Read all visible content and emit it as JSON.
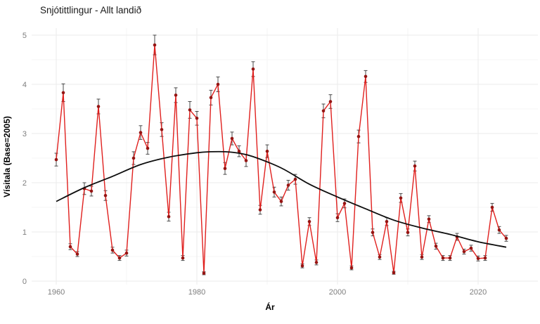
{
  "title": "Snjótittlingur - Allt landið",
  "chart_data": {
    "type": "line",
    "title": "Snjótittlingur - Allt landið",
    "xlabel": "Ár",
    "ylabel": "Vísitala (Base=2005)",
    "xlim": [
      1956.5,
      2028.5
    ],
    "ylim": [
      0,
      5.2
    ],
    "x_ticks": [
      1960,
      1980,
      2000,
      2020
    ],
    "x_tick_labels": [
      "1960",
      "1980",
      "2000",
      "2020"
    ],
    "x_minor_ticks": [
      1970,
      1990,
      2010
    ],
    "y_ticks": [
      0,
      1,
      2,
      3,
      4,
      5
    ],
    "y_tick_labels": [
      "0",
      "1",
      "2",
      "3",
      "4",
      "5"
    ],
    "y_minor_ticks": [
      0.5,
      1.5,
      2.5,
      3.5,
      4.5
    ],
    "grid": true,
    "legend": false,
    "series": [
      {
        "name": "index",
        "kind": "points-with-errorbars-and-line",
        "line_color": "#e0201e",
        "point_color": "#951513",
        "errorbar_color": "#4a4a4a",
        "years": [
          1960,
          1961,
          1962,
          1963,
          1964,
          1965,
          1966,
          1967,
          1968,
          1969,
          1970,
          1971,
          1972,
          1973,
          1974,
          1975,
          1976,
          1977,
          1978,
          1979,
          1980,
          1981,
          1982,
          1983,
          1984,
          1985,
          1986,
          1987,
          1988,
          1989,
          1990,
          1991,
          1992,
          1993,
          1994,
          1995,
          1996,
          1997,
          1998,
          1999,
          2000,
          2001,
          2002,
          2003,
          2004,
          2005,
          2006,
          2007,
          2008,
          2009,
          2010,
          2011,
          2012,
          2013,
          2014,
          2015,
          2016,
          2017,
          2018,
          2019,
          2020,
          2021,
          2022,
          2023,
          2024
        ],
        "values": [
          2.47,
          3.83,
          0.7,
          0.55,
          1.88,
          1.83,
          3.55,
          1.74,
          0.63,
          0.47,
          0.57,
          2.5,
          3.02,
          2.7,
          4.8,
          3.08,
          1.31,
          3.78,
          0.47,
          3.48,
          3.31,
          0.16,
          3.73,
          4.0,
          2.29,
          2.9,
          2.64,
          2.45,
          4.31,
          1.45,
          2.64,
          1.81,
          1.62,
          1.95,
          2.07,
          0.31,
          1.21,
          0.38,
          3.46,
          3.65,
          1.29,
          1.58,
          0.27,
          2.94,
          4.16,
          0.99,
          0.49,
          1.21,
          0.17,
          1.69,
          0.99,
          2.34,
          0.49,
          1.26,
          0.71,
          0.47,
          0.47,
          0.9,
          0.6,
          0.67,
          0.46,
          0.47,
          1.5,
          1.04,
          0.87
        ],
        "se": [
          0.13,
          0.18,
          0.06,
          0.05,
          0.12,
          0.1,
          0.15,
          0.1,
          0.06,
          0.05,
          0.06,
          0.13,
          0.14,
          0.12,
          0.2,
          0.14,
          0.09,
          0.15,
          0.05,
          0.17,
          0.14,
          0.03,
          0.15,
          0.15,
          0.12,
          0.13,
          0.11,
          0.12,
          0.15,
          0.09,
          0.13,
          0.1,
          0.09,
          0.1,
          0.1,
          0.04,
          0.08,
          0.05,
          0.14,
          0.14,
          0.08,
          0.09,
          0.04,
          0.13,
          0.12,
          0.07,
          0.05,
          0.08,
          0.03,
          0.09,
          0.07,
          0.1,
          0.05,
          0.07,
          0.06,
          0.05,
          0.05,
          0.07,
          0.05,
          0.06,
          0.05,
          0.05,
          0.08,
          0.07,
          0.06
        ]
      },
      {
        "name": "trend",
        "kind": "smooth-line",
        "line_color": "#0d0d0d",
        "years": [
          1960,
          1964,
          1968,
          1972,
          1976,
          1980,
          1982,
          1984,
          1986,
          1988,
          1992,
          1996,
          2000,
          2004,
          2008,
          2012,
          2016,
          2020,
          2024
        ],
        "values": [
          1.62,
          1.9,
          2.13,
          2.37,
          2.52,
          2.61,
          2.63,
          2.63,
          2.6,
          2.53,
          2.3,
          1.97,
          1.71,
          1.47,
          1.24,
          1.08,
          0.95,
          0.8,
          0.69
        ]
      }
    ],
    "grid_major_color": "#ebebeb",
    "grid_minor_color": "#f5f5f5",
    "tick_label_color": "#7e7e7e"
  }
}
